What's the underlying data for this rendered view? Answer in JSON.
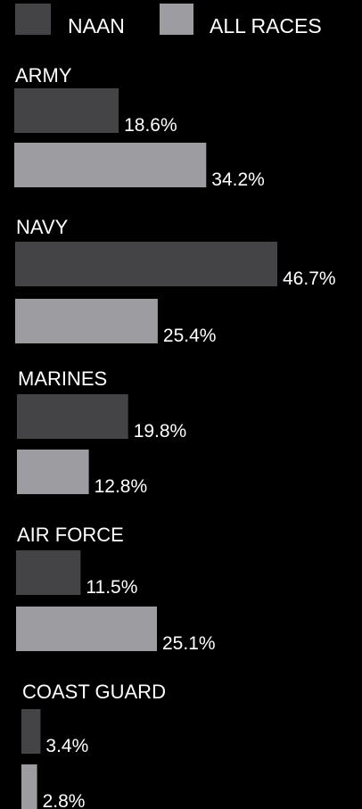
{
  "colors": {
    "background": "#000000",
    "naan": "#444446",
    "all_races": "#9d9da1",
    "text": "#ffffff"
  },
  "chart_data": {
    "type": "bar",
    "orientation": "horizontal",
    "title": "",
    "xlabel": "",
    "ylabel": "",
    "xlim": [
      0,
      46.7
    ],
    "grid": false,
    "legend_placement": "top",
    "series": [
      {
        "name": "NAAN",
        "values": [
          18.6,
          46.7,
          19.8,
          11.5,
          3.4
        ]
      },
      {
        "name": "ALL RACES",
        "values": [
          34.2,
          25.4,
          12.8,
          25.1,
          2.8
        ]
      }
    ],
    "categories": [
      "ARMY",
      "NAVY",
      "MARINES",
      "AIR FORCE",
      "COAST GUARD"
    ],
    "value_labels": [
      [
        "18.6%",
        "34.2%"
      ],
      [
        "46.7%",
        "25.4%"
      ],
      [
        "19.8%",
        "12.8%"
      ],
      [
        "11.5%",
        "25.1%"
      ],
      [
        "3.4%",
        "2.8%"
      ]
    ]
  }
}
